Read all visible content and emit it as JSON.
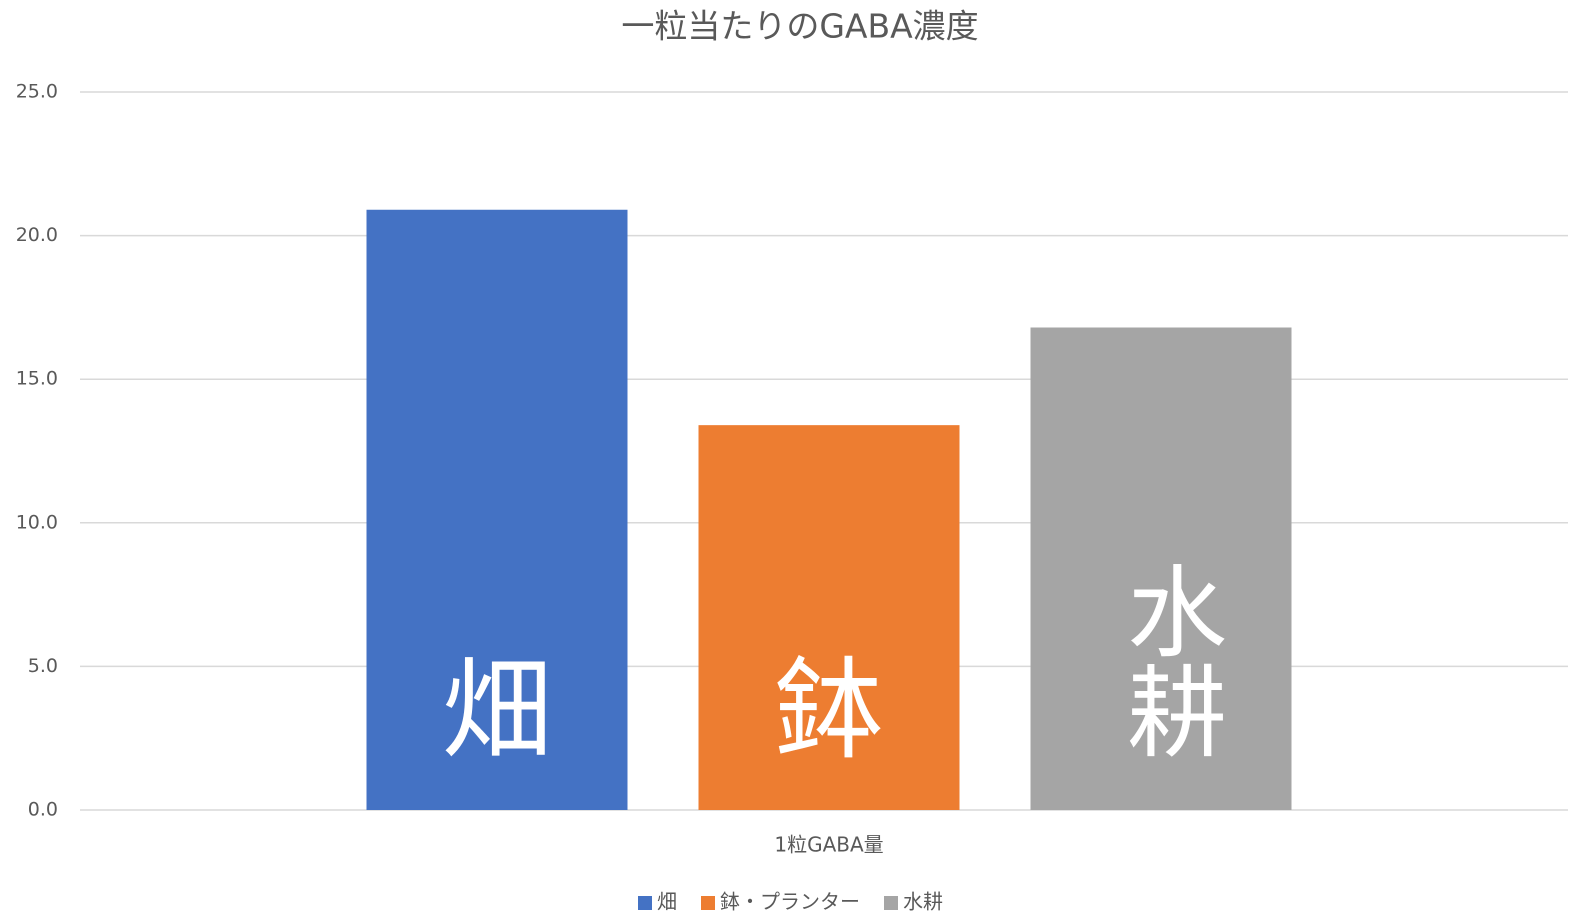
{
  "chart_data": {
    "type": "bar",
    "title": "一粒当たりのGABA濃度",
    "categories": [
      "1粒GABA量"
    ],
    "series": [
      {
        "name": "畑",
        "color": "#4472c4",
        "values": [
          20.9
        ]
      },
      {
        "name": "鉢・プランター",
        "color": "#ed7d31",
        "values": [
          13.4
        ]
      },
      {
        "name": "水耕",
        "color": "#a5a5a5",
        "values": [
          16.8
        ]
      }
    ],
    "annotations": [
      "畑",
      "鉢",
      "水耕"
    ],
    "ylim": [
      0,
      25
    ],
    "yticks": [
      {
        "value": 0,
        "label": "0.0"
      },
      {
        "value": 5,
        "label": "5.0"
      },
      {
        "value": 10,
        "label": "10.0"
      },
      {
        "value": 15,
        "label": "15.0"
      },
      {
        "value": 20,
        "label": "20.0"
      },
      {
        "value": 25,
        "label": "25.0"
      }
    ],
    "grid": true,
    "legend": "bottom"
  }
}
